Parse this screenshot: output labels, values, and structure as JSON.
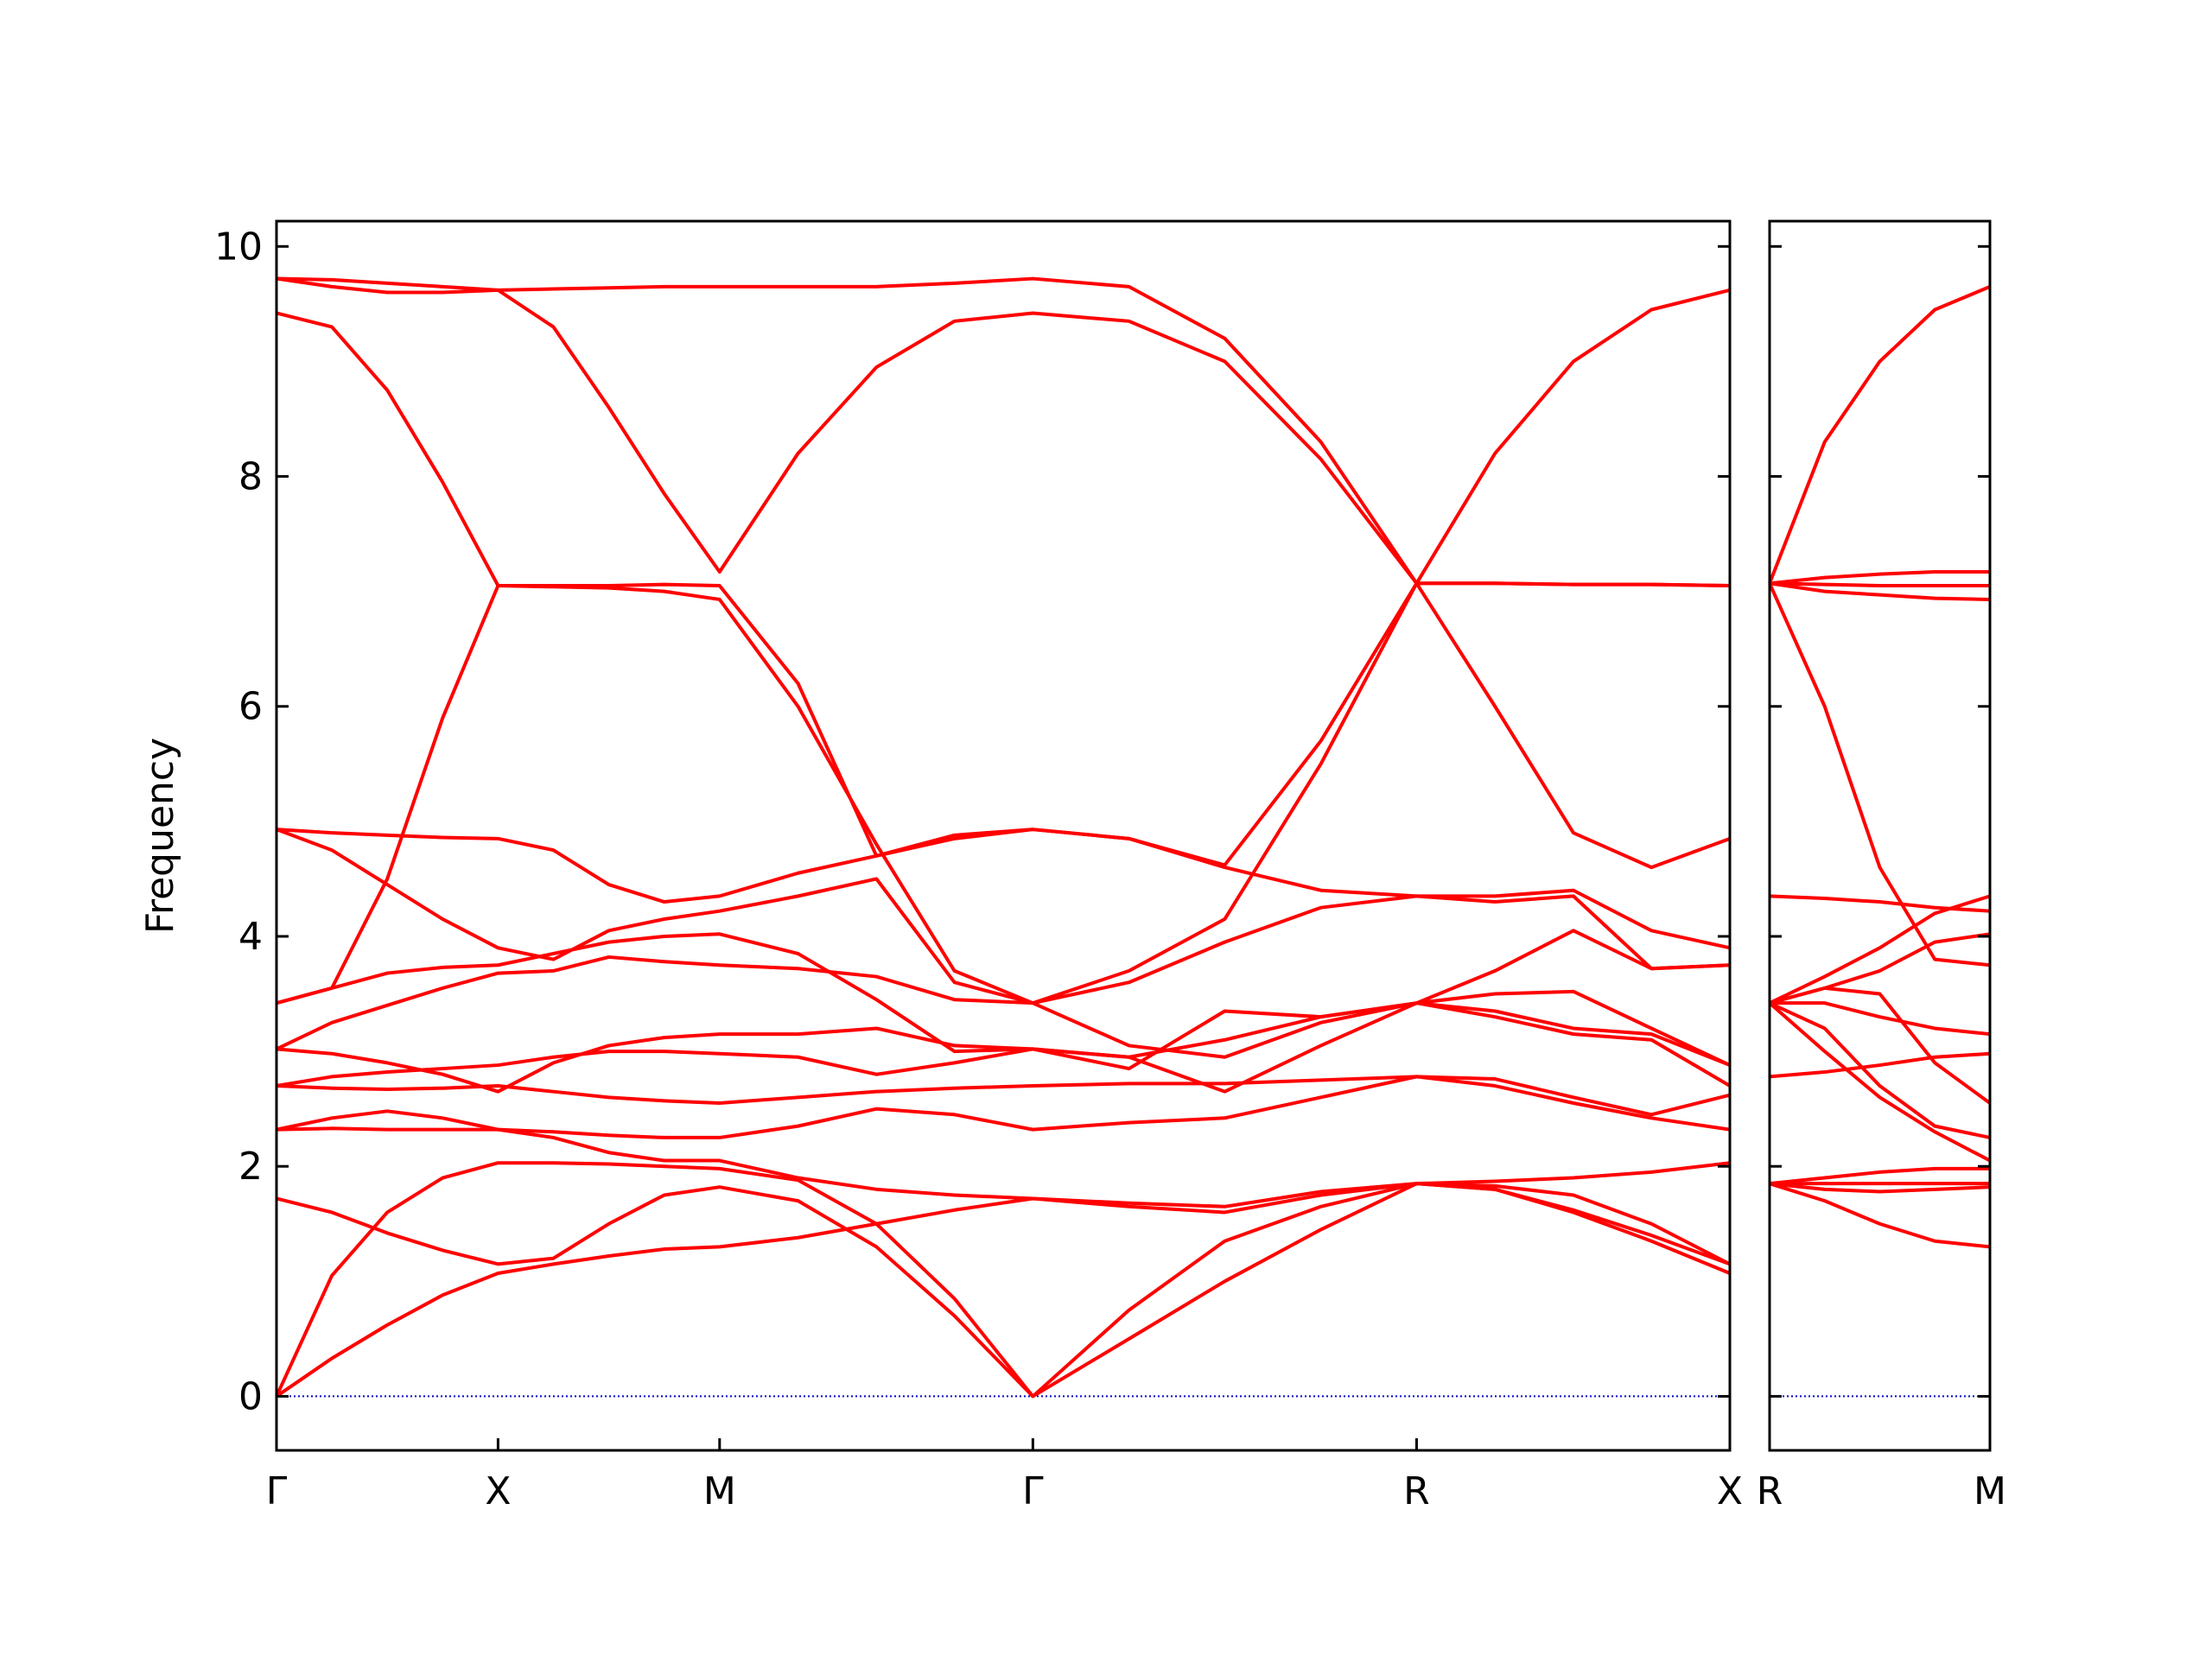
{
  "chart_data": [
    {
      "type": "line",
      "ylabel": "Frequency",
      "x": [
        0,
        0.125,
        0.25,
        0.375,
        0.5,
        0.625,
        0.75,
        0.875,
        1.0,
        1.177,
        1.354,
        1.53,
        1.707,
        1.924,
        2.14,
        2.357,
        2.573,
        2.75,
        2.927,
        3.103,
        3.28
      ],
      "xlim": [
        0,
        3.28
      ],
      "xticks": [
        {
          "value": 0,
          "label": "Γ"
        },
        {
          "value": 0.5,
          "label": "X"
        },
        {
          "value": 1.0,
          "label": "M"
        },
        {
          "value": 1.707,
          "label": "Γ"
        },
        {
          "value": 2.573,
          "label": "R"
        },
        {
          "value": 3.28,
          "label": "X"
        }
      ],
      "ylim": [
        -0.47,
        10.22
      ],
      "yticks": [
        0,
        2,
        4,
        6,
        8,
        10
      ],
      "color": "#ff0000",
      "reference_lines": [
        {
          "value": 0,
          "color": "#0000cc"
        }
      ],
      "series": [
        {
          "values": [
            0,
            0.33,
            0.62,
            0.88,
            1.07,
            1.15,
            1.22,
            1.28,
            1.3,
            1.38,
            1.5,
            1.62,
            1.72,
            1.65,
            1.6,
            1.75,
            1.85,
            1.8,
            1.6,
            1.35,
            1.07
          ]
        },
        {
          "values": [
            0,
            1.05,
            1.6,
            1.9,
            2.03,
            2.03,
            2.02,
            2.0,
            1.98,
            1.88,
            1.5,
            0.85,
            0,
            0.75,
            1.35,
            1.65,
            1.85,
            1.8,
            1.62,
            1.4,
            1.15
          ]
        },
        {
          "values": [
            1.72,
            1.6,
            1.42,
            1.27,
            1.15,
            1.2,
            1.5,
            1.75,
            1.82,
            1.7,
            1.3,
            0.7,
            0,
            0.5,
            1.0,
            1.45,
            1.85,
            1.87,
            1.9,
            1.95,
            2.03
          ]
        },
        {
          "values": [
            2.32,
            2.33,
            2.32,
            2.32,
            2.32,
            2.3,
            2.27,
            2.25,
            2.25,
            2.35,
            2.5,
            2.45,
            2.32,
            2.38,
            2.42,
            2.6,
            2.78,
            2.7,
            2.55,
            2.42,
            2.32
          ]
        },
        {
          "values": [
            2.32,
            2.42,
            2.48,
            2.42,
            2.32,
            2.25,
            2.12,
            2.05,
            2.05,
            1.9,
            1.8,
            1.75,
            1.72,
            1.68,
            1.65,
            1.78,
            1.85,
            1.83,
            1.75,
            1.5,
            1.15
          ]
        },
        {
          "values": [
            2.7,
            2.68,
            2.67,
            2.68,
            2.7,
            2.65,
            2.6,
            2.57,
            2.55,
            2.6,
            2.65,
            2.68,
            2.7,
            2.72,
            2.72,
            2.75,
            2.78,
            2.76,
            2.6,
            2.45,
            2.62
          ]
        },
        {
          "values": [
            2.7,
            2.78,
            2.82,
            2.85,
            2.88,
            2.95,
            3.0,
            3.0,
            2.98,
            2.95,
            2.8,
            2.9,
            3.02,
            2.95,
            3.1,
            3.3,
            3.42,
            3.5,
            3.52,
            3.2,
            2.88
          ]
        },
        {
          "values": [
            3.02,
            2.98,
            2.9,
            2.8,
            2.65,
            2.9,
            3.05,
            3.12,
            3.15,
            3.15,
            3.2,
            3.05,
            3.02,
            2.85,
            3.35,
            3.3,
            3.42,
            3.3,
            3.15,
            3.1,
            2.7
          ]
        },
        {
          "values": [
            3.02,
            3.25,
            3.4,
            3.55,
            3.68,
            3.7,
            3.82,
            3.78,
            3.75,
            3.72,
            3.65,
            3.45,
            3.42,
            3.05,
            2.95,
            3.25,
            3.42,
            3.7,
            4.05,
            3.72,
            3.75
          ]
        },
        {
          "values": [
            3.42,
            3.55,
            3.68,
            3.73,
            3.75,
            3.85,
            3.95,
            4.0,
            4.02,
            3.85,
            3.45,
            3.0,
            3.02,
            2.95,
            2.65,
            3.05,
            3.42,
            3.35,
            3.2,
            3.15,
            2.88
          ]
        },
        {
          "values": [
            3.42,
            3.55,
            4.5,
            5.9,
            7.05,
            7.05,
            7.05,
            7.06,
            7.05,
            6.2,
            4.7,
            4.85,
            4.93,
            4.85,
            4.6,
            4.4,
            4.35,
            4.35,
            4.4,
            4.05,
            3.9
          ]
        },
        {
          "values": [
            4.93,
            4.75,
            4.45,
            4.15,
            3.9,
            3.8,
            4.05,
            4.15,
            4.22,
            4.35,
            4.5,
            3.6,
            3.42,
            3.6,
            3.95,
            4.25,
            4.35,
            4.3,
            4.35,
            3.72,
            3.75
          ]
        },
        {
          "values": [
            4.93,
            4.9,
            4.88,
            4.86,
            4.85,
            4.75,
            4.45,
            4.3,
            4.35,
            4.55,
            4.7,
            4.88,
            4.93,
            4.85,
            4.62,
            5.7,
            7.07,
            6.0,
            4.9,
            4.6,
            4.85
          ]
        },
        {
          "values": [
            9.42,
            9.3,
            8.75,
            7.95,
            7.05,
            7.04,
            7.03,
            7.0,
            6.93,
            6.0,
            4.8,
            3.7,
            3.42,
            3.7,
            4.15,
            5.5,
            7.07,
            7.07,
            7.06,
            7.06,
            7.05
          ]
        },
        {
          "values": [
            9.72,
            9.65,
            9.6,
            9.6,
            9.62,
            9.3,
            8.6,
            7.85,
            7.17,
            8.2,
            8.95,
            9.35,
            9.42,
            9.35,
            9.0,
            8.15,
            7.07,
            7.07,
            7.06,
            7.06,
            7.05
          ]
        },
        {
          "values": [
            9.72,
            9.71,
            9.68,
            9.65,
            9.62,
            9.63,
            9.64,
            9.65,
            9.65,
            9.65,
            9.65,
            9.68,
            9.72,
            9.65,
            9.2,
            8.3,
            7.07,
            8.2,
            9.0,
            9.45,
            9.62
          ]
        }
      ]
    },
    {
      "type": "line",
      "x": [
        0,
        0.125,
        0.25,
        0.375,
        0.5
      ],
      "xlim": [
        0,
        0.5
      ],
      "xticks": [
        {
          "value": 0,
          "label": "R"
        },
        {
          "value": 0.5,
          "label": "M"
        }
      ],
      "ylim": [
        -0.47,
        10.22
      ],
      "yticks": [
        0,
        2,
        4,
        6,
        8,
        10
      ],
      "show_ytick_labels": false,
      "color": "#ff0000",
      "reference_lines": [
        {
          "value": 0,
          "color": "#0000cc"
        }
      ],
      "series": [
        {
          "values": [
            7.07,
            8.3,
            9.0,
            9.45,
            9.65
          ]
        },
        {
          "values": [
            7.07,
            7.12,
            7.15,
            7.17,
            7.17
          ]
        },
        {
          "values": [
            7.07,
            7.06,
            7.05,
            7.05,
            7.05
          ]
        },
        {
          "values": [
            7.07,
            7.0,
            6.97,
            6.94,
            6.93
          ]
        },
        {
          "values": [
            7.07,
            6.0,
            4.6,
            3.8,
            3.75
          ]
        },
        {
          "values": [
            4.35,
            4.33,
            4.3,
            4.25,
            4.22
          ]
        },
        {
          "values": [
            3.42,
            3.65,
            3.9,
            4.2,
            4.35
          ]
        },
        {
          "values": [
            3.42,
            3.55,
            3.7,
            3.95,
            4.02
          ]
        },
        {
          "values": [
            3.42,
            3.42,
            3.3,
            3.2,
            3.15
          ]
        },
        {
          "values": [
            3.42,
            3.55,
            3.5,
            2.9,
            2.55
          ]
        },
        {
          "values": [
            3.42,
            3.0,
            2.6,
            2.3,
            2.05
          ]
        },
        {
          "values": [
            3.42,
            3.2,
            2.7,
            2.35,
            2.25
          ]
        },
        {
          "values": [
            2.78,
            2.82,
            2.88,
            2.95,
            2.98
          ]
        },
        {
          "values": [
            1.85,
            1.9,
            1.95,
            1.98,
            1.98
          ]
        },
        {
          "values": [
            1.85,
            1.8,
            1.78,
            1.8,
            1.82
          ]
        },
        {
          "values": [
            1.85,
            1.7,
            1.5,
            1.35,
            1.3
          ]
        },
        {
          "values": [
            1.85,
            1.85,
            1.85,
            1.85,
            1.85
          ]
        }
      ]
    }
  ]
}
